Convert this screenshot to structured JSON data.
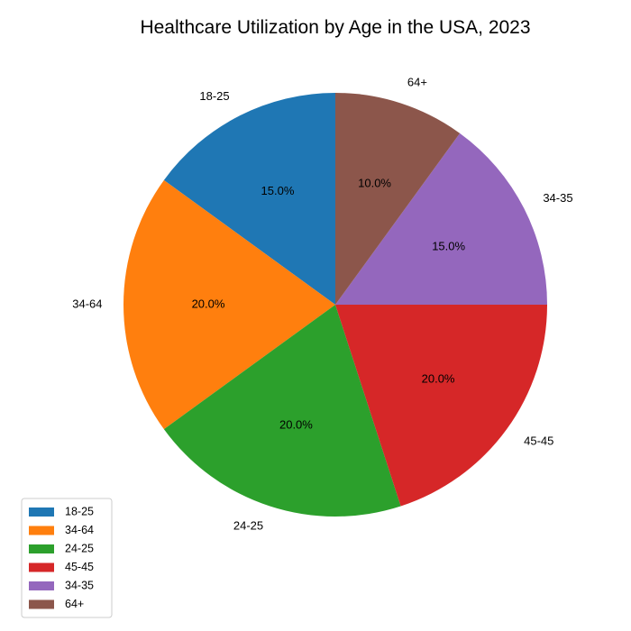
{
  "chart_data": {
    "type": "pie",
    "title": "Healthcare Utilization by Age in the USA, 2023",
    "categories": [
      "18-25",
      "34-64",
      "24-25",
      "45-45",
      "34-35",
      "64+"
    ],
    "values": [
      15.0,
      20.0,
      20.0,
      20.0,
      15.0,
      10.0
    ],
    "percent_labels": [
      "15.0%",
      "20.0%",
      "20.0%",
      "20.0%",
      "15.0%",
      "10.0%"
    ],
    "colors": [
      "#1f77b4",
      "#ff7f0e",
      "#2ca02c",
      "#d62728",
      "#9467bd",
      "#8c564b"
    ],
    "start_angle": "12 o'clock",
    "direction": "counterclockwise",
    "legend": {
      "placement": "bottom-left",
      "entries": [
        "18-25",
        "34-64",
        "24-25",
        "45-45",
        "34-35",
        "64+"
      ]
    }
  }
}
